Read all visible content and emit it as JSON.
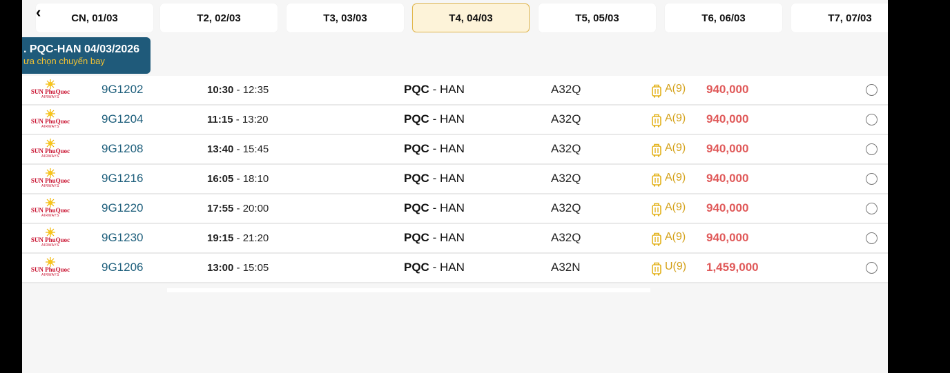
{
  "nav": {
    "prev_icon": "chevron-left-icon",
    "prev_glyph": "‹"
  },
  "date_tabs": [
    {
      "label": "CN, 01/03",
      "active": false
    },
    {
      "label": "T2, 02/03",
      "active": false
    },
    {
      "label": "T3, 03/03",
      "active": false
    },
    {
      "label": "T4, 04/03",
      "active": true
    },
    {
      "label": "T5, 05/03",
      "active": false
    },
    {
      "label": "T6, 06/03",
      "active": false
    },
    {
      "label": "T7, 07/03",
      "active": false
    }
  ],
  "route_badge": {
    "title": ". PQC-HAN 04/03/2026",
    "subtitle": "ưa chọn chuyến bay"
  },
  "airline": {
    "name": "SUN PhuQuoc",
    "sub": "AIRWAYS",
    "logo_icon": "sun-phuquoc-logo-icon"
  },
  "flights": [
    {
      "flight_no": "9G1202",
      "dep": "10:30",
      "arr": "12:35",
      "from": "PQC",
      "to": "HAN",
      "aircraft": "A32Q",
      "fare_class": "A(9)",
      "price": "940,000"
    },
    {
      "flight_no": "9G1204",
      "dep": "11:15",
      "arr": "13:20",
      "from": "PQC",
      "to": "HAN",
      "aircraft": "A32Q",
      "fare_class": "A(9)",
      "price": "940,000"
    },
    {
      "flight_no": "9G1208",
      "dep": "13:40",
      "arr": "15:45",
      "from": "PQC",
      "to": "HAN",
      "aircraft": "A32Q",
      "fare_class": "A(9)",
      "price": "940,000"
    },
    {
      "flight_no": "9G1216",
      "dep": "16:05",
      "arr": "18:10",
      "from": "PQC",
      "to": "HAN",
      "aircraft": "A32Q",
      "fare_class": "A(9)",
      "price": "940,000"
    },
    {
      "flight_no": "9G1220",
      "dep": "17:55",
      "arr": "20:00",
      "from": "PQC",
      "to": "HAN",
      "aircraft": "A32Q",
      "fare_class": "A(9)",
      "price": "940,000"
    },
    {
      "flight_no": "9G1230",
      "dep": "19:15",
      "arr": "21:20",
      "from": "PQC",
      "to": "HAN",
      "aircraft": "A32Q",
      "fare_class": "A(9)",
      "price": "940,000"
    },
    {
      "flight_no": "9G1206",
      "dep": "13:00",
      "arr": "15:05",
      "from": "PQC",
      "to": "HAN",
      "aircraft": "A32N",
      "fare_class": "U(9)",
      "price": "1,459,000"
    }
  ],
  "colors": {
    "accent_blue": "#1f5a7a",
    "flight_no": "#1e5f7c",
    "price": "#e05a5a",
    "fare_class": "#d4a017",
    "active_tab_bg": "#fdf3d9",
    "active_tab_border": "#e2b64a"
  },
  "icons": {
    "baggage": "luggage-icon",
    "select": "radio-button"
  }
}
